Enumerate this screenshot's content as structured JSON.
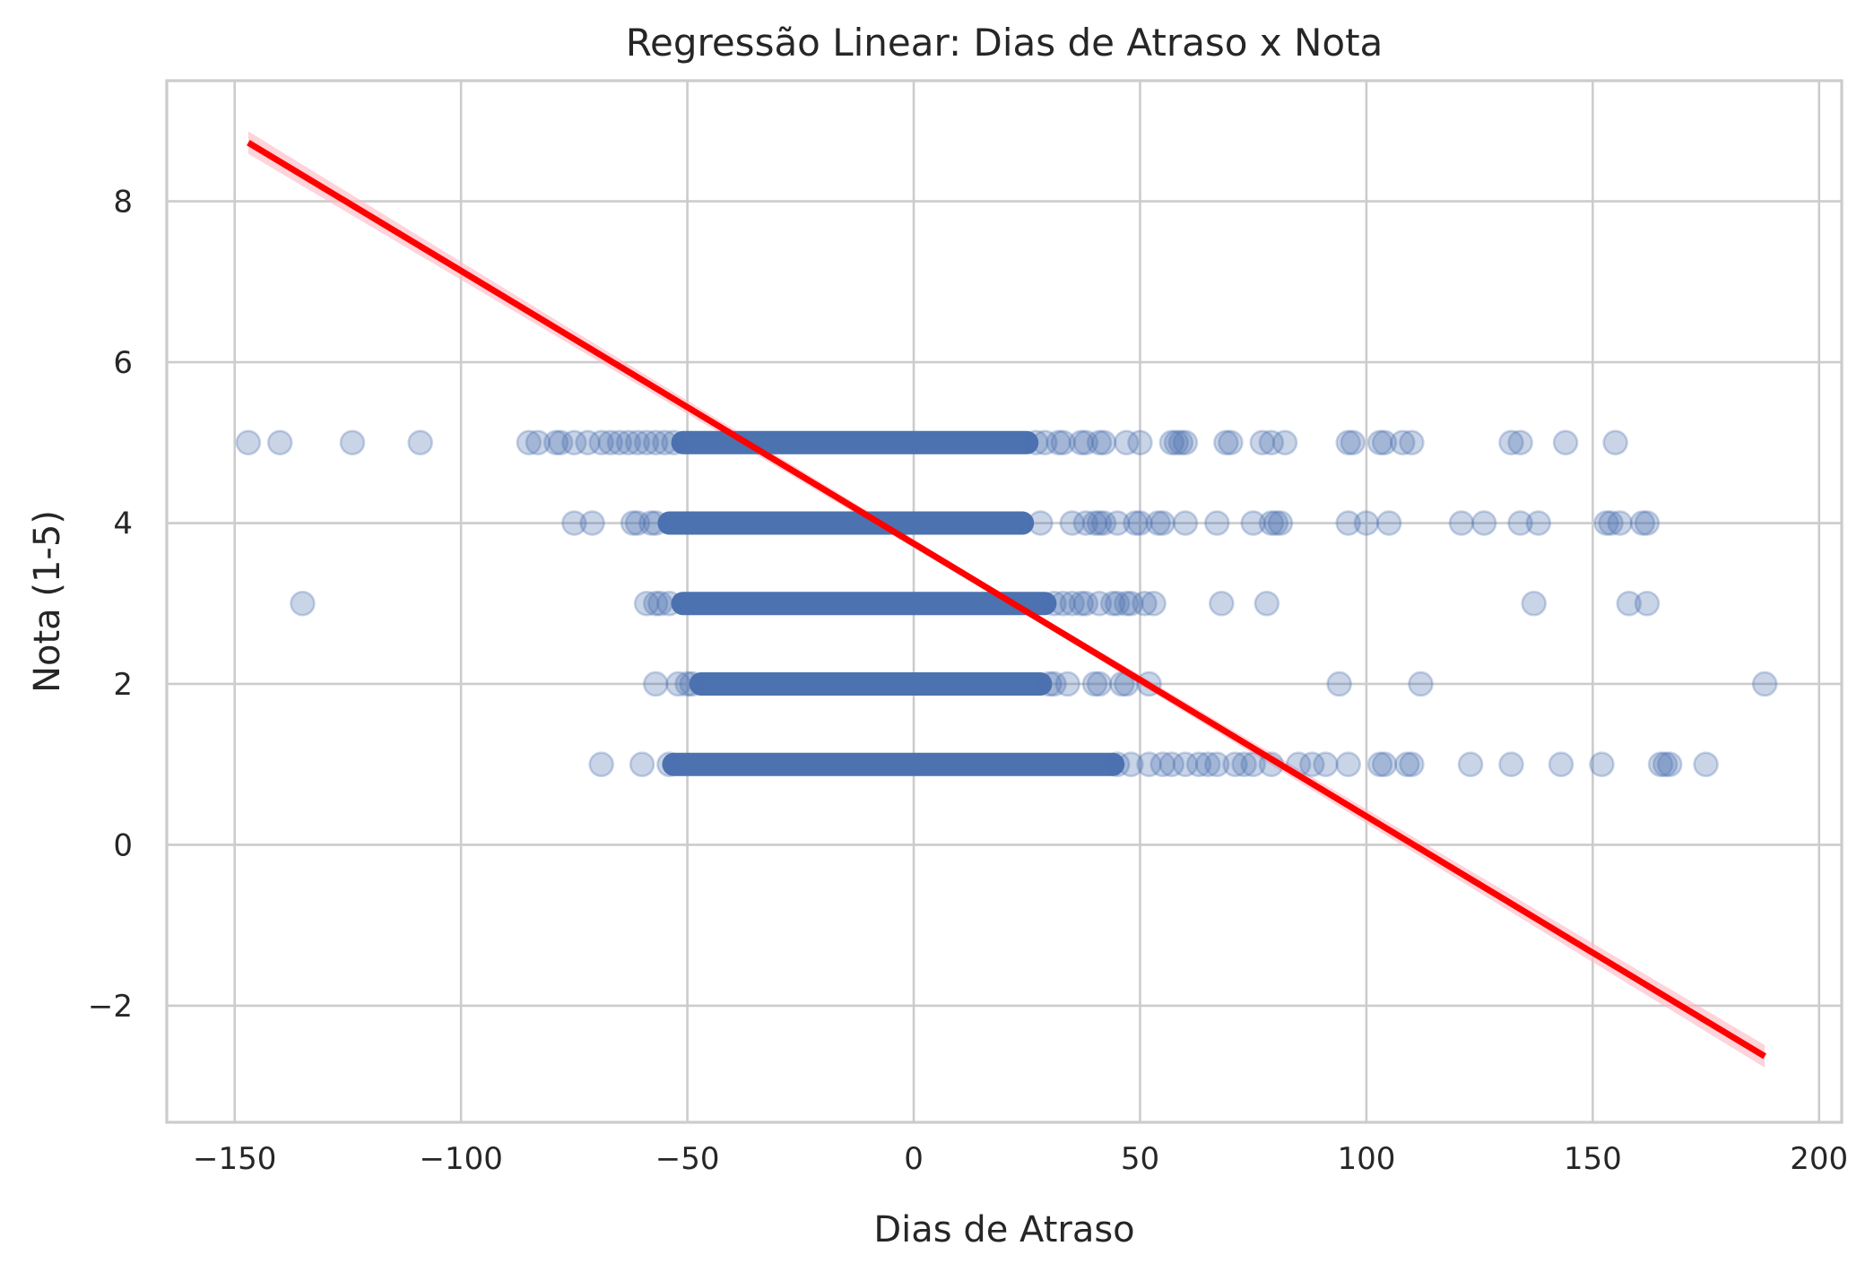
{
  "chart_data": {
    "type": "scatter",
    "title": "Regressão Linear: Dias de Atraso x Nota",
    "xlabel": "Dias de Atraso",
    "ylabel": "Nota (1-5)",
    "xlim": [
      -165,
      205
    ],
    "ylim": [
      -3.45,
      9.5
    ],
    "x_ticks": [
      -150,
      -100,
      -50,
      0,
      50,
      100,
      150,
      200
    ],
    "x_tick_labels": [
      "−150",
      "−100",
      "−50",
      "0",
      "50",
      "100",
      "150",
      "200"
    ],
    "y_ticks": [
      -2,
      0,
      2,
      4,
      6,
      8
    ],
    "y_tick_labels": [
      "−2",
      "0",
      "2",
      "4",
      "6",
      "8"
    ],
    "grid": true,
    "colors": {
      "points": "#4c72b0",
      "regression": "#ff0000",
      "ci_band": "#ffb6c1",
      "grid": "#cccccc"
    },
    "dense_ranges": [
      {
        "y": 5,
        "x_from": -51,
        "x_to": 25
      },
      {
        "y": 4,
        "x_from": -54,
        "x_to": 24
      },
      {
        "y": 3,
        "x_from": -51,
        "x_to": 29
      },
      {
        "y": 2,
        "x_from": -47,
        "x_to": 28
      },
      {
        "y": 1,
        "x_from": -53,
        "x_to": 44
      }
    ],
    "series": [
      {
        "values": [
          [
            -147,
            5
          ],
          [
            -140,
            5
          ],
          [
            -124,
            5
          ],
          [
            -109,
            5
          ],
          [
            -85,
            5
          ],
          [
            -83,
            5
          ],
          [
            -79,
            5
          ],
          [
            -78,
            5
          ],
          [
            -75,
            5
          ],
          [
            -72,
            5
          ],
          [
            -69,
            5
          ],
          [
            -67,
            5
          ],
          [
            -65,
            5
          ],
          [
            -63,
            5
          ],
          [
            -61,
            5
          ],
          [
            -59,
            5
          ],
          [
            -57,
            5
          ],
          [
            -55,
            5
          ],
          [
            -53,
            5
          ],
          [
            27,
            5
          ],
          [
            29,
            5
          ],
          [
            32,
            5
          ],
          [
            33,
            5
          ],
          [
            37,
            5
          ],
          [
            38,
            5
          ],
          [
            41,
            5
          ],
          [
            42,
            5
          ],
          [
            47,
            5
          ],
          [
            50,
            5
          ],
          [
            57,
            5
          ],
          [
            58,
            5
          ],
          [
            59,
            5
          ],
          [
            60,
            5
          ],
          [
            69,
            5
          ],
          [
            70,
            5
          ],
          [
            77,
            5
          ],
          [
            79,
            5
          ],
          [
            82,
            5
          ],
          [
            96,
            5
          ],
          [
            97,
            5
          ],
          [
            103,
            5
          ],
          [
            104,
            5
          ],
          [
            108,
            5
          ],
          [
            110,
            5
          ],
          [
            132,
            5
          ],
          [
            134,
            5
          ],
          [
            144,
            5
          ],
          [
            155,
            5
          ],
          [
            -75,
            4
          ],
          [
            -71,
            4
          ],
          [
            -62,
            4
          ],
          [
            -61,
            4
          ],
          [
            -58,
            4
          ],
          [
            -57,
            4
          ],
          [
            28,
            4
          ],
          [
            35,
            4
          ],
          [
            38,
            4
          ],
          [
            40,
            4
          ],
          [
            41,
            4
          ],
          [
            42,
            4
          ],
          [
            45,
            4
          ],
          [
            49,
            4
          ],
          [
            50,
            4
          ],
          [
            54,
            4
          ],
          [
            55,
            4
          ],
          [
            60,
            4
          ],
          [
            67,
            4
          ],
          [
            75,
            4
          ],
          [
            79,
            4
          ],
          [
            80,
            4
          ],
          [
            81,
            4
          ],
          [
            96,
            4
          ],
          [
            100,
            4
          ],
          [
            105,
            4
          ],
          [
            121,
            4
          ],
          [
            126,
            4
          ],
          [
            134,
            4
          ],
          [
            138,
            4
          ],
          [
            153,
            4
          ],
          [
            154,
            4
          ],
          [
            156,
            4
          ],
          [
            161,
            4
          ],
          [
            162,
            4
          ],
          [
            -135,
            3
          ],
          [
            -59,
            3
          ],
          [
            -57,
            3
          ],
          [
            -56,
            3
          ],
          [
            -54,
            3
          ],
          [
            31,
            3
          ],
          [
            33,
            3
          ],
          [
            35,
            3
          ],
          [
            37,
            3
          ],
          [
            38,
            3
          ],
          [
            41,
            3
          ],
          [
            44,
            3
          ],
          [
            45,
            3
          ],
          [
            47,
            3
          ],
          [
            48,
            3
          ],
          [
            51,
            3
          ],
          [
            53,
            3
          ],
          [
            68,
            3
          ],
          [
            78,
            3
          ],
          [
            137,
            3
          ],
          [
            158,
            3
          ],
          [
            162,
            3
          ],
          [
            -57,
            2
          ],
          [
            -52,
            2
          ],
          [
            -50,
            2
          ],
          [
            -49,
            2
          ],
          [
            30,
            2
          ],
          [
            31,
            2
          ],
          [
            34,
            2
          ],
          [
            40,
            2
          ],
          [
            41,
            2
          ],
          [
            46,
            2
          ],
          [
            47,
            2
          ],
          [
            52,
            2
          ],
          [
            94,
            2
          ],
          [
            112,
            2
          ],
          [
            188,
            2
          ],
          [
            -69,
            1
          ],
          [
            -60,
            1
          ],
          [
            -54,
            1
          ],
          [
            45,
            1
          ],
          [
            48,
            1
          ],
          [
            52,
            1
          ],
          [
            55,
            1
          ],
          [
            57,
            1
          ],
          [
            60,
            1
          ],
          [
            63,
            1
          ],
          [
            65,
            1
          ],
          [
            67,
            1
          ],
          [
            71,
            1
          ],
          [
            73,
            1
          ],
          [
            75,
            1
          ],
          [
            79,
            1
          ],
          [
            85,
            1
          ],
          [
            88,
            1
          ],
          [
            91,
            1
          ],
          [
            96,
            1
          ],
          [
            103,
            1
          ],
          [
            104,
            1
          ],
          [
            109,
            1
          ],
          [
            110,
            1
          ],
          [
            123,
            1
          ],
          [
            132,
            1
          ],
          [
            143,
            1
          ],
          [
            152,
            1
          ],
          [
            165,
            1
          ],
          [
            166,
            1
          ],
          [
            167,
            1
          ],
          [
            175,
            1
          ]
        ]
      }
    ],
    "regression": {
      "x": [
        -147,
        188
      ],
      "y": [
        8.73,
        -2.63
      ],
      "ci_halfwidth_ends": 0.14
    }
  }
}
